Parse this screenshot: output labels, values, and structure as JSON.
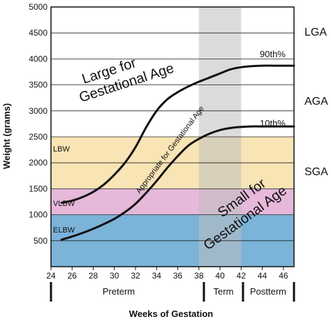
{
  "chart_data": {
    "type": "line",
    "xlabel": "Weeks of Gestation",
    "ylabel": "Weight (grams)",
    "xlim": [
      24,
      47
    ],
    "ylim": [
      0,
      5000
    ],
    "xticks": [
      24,
      26,
      28,
      30,
      32,
      34,
      36,
      38,
      40,
      42,
      44,
      46
    ],
    "yticks": [
      500,
      1000,
      1500,
      2000,
      2500,
      3000,
      3500,
      4000,
      4500,
      5000
    ],
    "grid": "horizontal",
    "bands": [
      {
        "label": "ELBW",
        "from": 0,
        "to": 1000,
        "color": "#7bb3d9"
      },
      {
        "label": "VLBW",
        "from": 1000,
        "to": 1500,
        "color": "#e6b8da"
      },
      {
        "label": "LBW",
        "from": 1500,
        "to": 2500,
        "color": "#f8e4b4"
      }
    ],
    "term_band": {
      "from": 38,
      "to": 42,
      "color": "#bdbdbd"
    },
    "series": [
      {
        "name": "90th%",
        "x": [
          25,
          26,
          27,
          28,
          29,
          30,
          31,
          32,
          33,
          34,
          35,
          36,
          37,
          38,
          39,
          40,
          41,
          42,
          43,
          44,
          45,
          46,
          47
        ],
        "y": [
          1230,
          1270,
          1340,
          1440,
          1580,
          1770,
          2000,
          2300,
          2680,
          3000,
          3220,
          3360,
          3470,
          3560,
          3640,
          3720,
          3800,
          3840,
          3860,
          3870,
          3870,
          3870,
          3870
        ]
      },
      {
        "name": "10th%",
        "x": [
          25,
          26,
          27,
          28,
          29,
          30,
          31,
          32,
          33,
          34,
          35,
          36,
          37,
          38,
          39,
          40,
          41,
          42,
          43,
          44,
          45,
          46,
          47
        ],
        "y": [
          520,
          580,
          650,
          730,
          820,
          920,
          1050,
          1210,
          1420,
          1650,
          1900,
          2130,
          2330,
          2460,
          2560,
          2630,
          2670,
          2690,
          2700,
          2700,
          2700,
          2700,
          2700
        ]
      }
    ],
    "region_labels": {
      "lga_region": "Large for Gestational Age",
      "aga_region": "Appropriate for Gestational Age",
      "sga_region": "Small for Gestational Age"
    },
    "side_labels": [
      "LGA",
      "AGA",
      "SGA"
    ],
    "periods": [
      "Preterm",
      "Term",
      "Postterm"
    ]
  }
}
